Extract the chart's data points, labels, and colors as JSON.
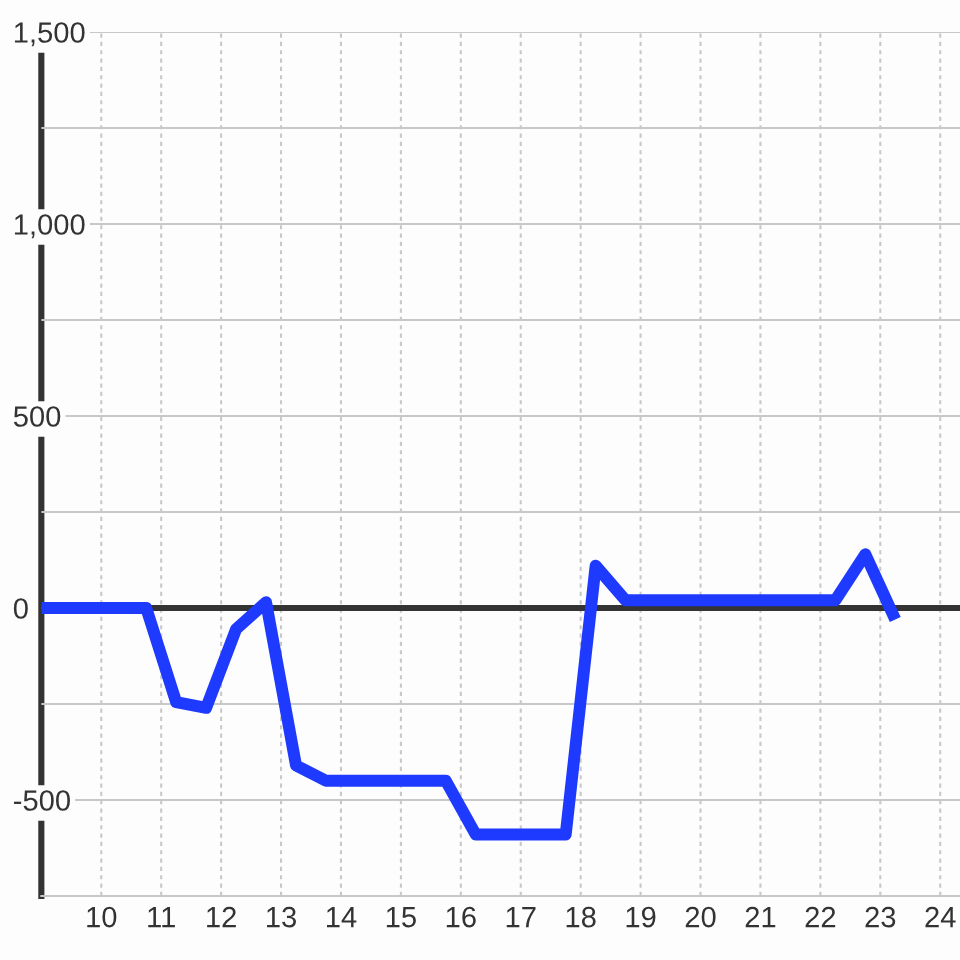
{
  "chart_data": {
    "type": "line",
    "x": [
      9,
      10.75,
      11.25,
      11.75,
      12.25,
      12.75,
      13.25,
      13.75,
      15.75,
      16.25,
      17.75,
      18.25,
      18.75,
      22.25,
      22.75,
      23.25
    ],
    "series": [
      {
        "color": "#1f3aff",
        "values": [
          0,
          0,
          -245,
          -260,
          -55,
          15,
          -410,
          -450,
          -450,
          -590,
          -590,
          110,
          20,
          20,
          140,
          -30
        ]
      }
    ],
    "xlim": [
      9,
      24.33
    ],
    "xticks": [
      10,
      11,
      12,
      13,
      14,
      15,
      16,
      17,
      18,
      19,
      20,
      21,
      22,
      23,
      24
    ],
    "ylim": [
      -750,
      1500
    ],
    "yticks": [
      -500,
      {
        "value": -250,
        "label": null
      },
      0,
      {
        "value": 250,
        "label": null
      },
      500,
      {
        "value": 750,
        "label": null
      },
      {
        "value": 1000,
        "label": "1,000"
      },
      {
        "value": 1250,
        "label": null
      },
      {
        "value": 1500,
        "label": "1,500"
      }
    ],
    "grid": true,
    "ref_lines": [
      {
        "axis": "y",
        "value": 0,
        "color": "#333333"
      }
    ]
  }
}
